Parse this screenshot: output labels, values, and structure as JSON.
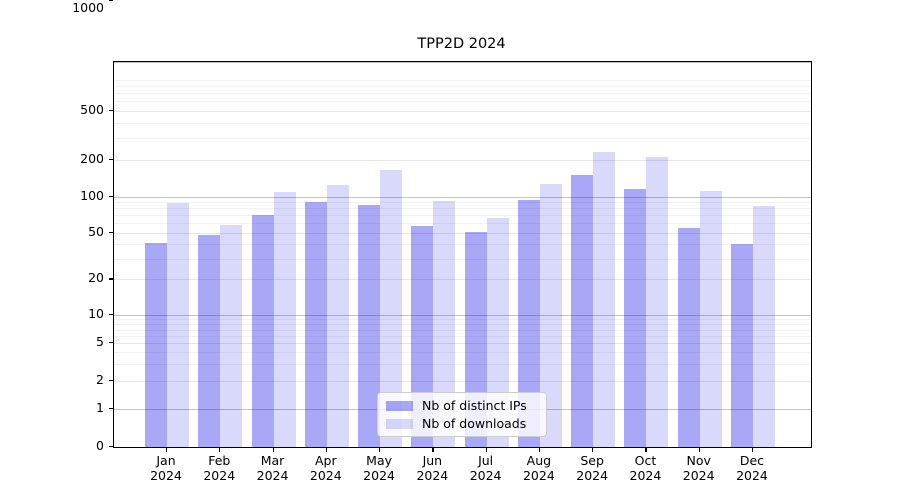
{
  "chart_data": {
    "type": "bar",
    "title": "TPP2D 2024",
    "months": [
      "Jan",
      "Feb",
      "Mar",
      "Apr",
      "May",
      "Jun",
      "Jul",
      "Aug",
      "Sep",
      "Oct",
      "Nov",
      "Dec"
    ],
    "year": "2024",
    "series": [
      {
        "name": "Nb of distinct IPs",
        "color": "rgba(0,0,230,0.34)",
        "values": [
          41,
          48,
          71,
          91,
          86,
          57,
          51,
          94,
          152,
          116,
          55,
          40
        ]
      },
      {
        "name": "Nb of downloads",
        "color": "rgba(0,0,230,0.15)",
        "values": [
          89,
          58,
          110,
          126,
          165,
          93,
          67,
          127,
          232,
          211,
          112,
          84
        ]
      }
    ],
    "y_axis": {
      "scale": "symlog",
      "ylim": [
        0,
        1000
      ],
      "ticks": [
        0,
        1,
        2,
        5,
        10,
        20,
        50,
        100,
        200,
        500,
        1000
      ],
      "minor_ticks": [
        3,
        4,
        6,
        7,
        8,
        9,
        30,
        40,
        60,
        70,
        80,
        90,
        300,
        400,
        600,
        700,
        800,
        900
      ]
    },
    "legend_position": "lower center",
    "grid": "on",
    "colors": {
      "grid_decade": "#c4c4c4",
      "grid_labeled": "#e7e7e7",
      "grid_minor": "#f2f2f2",
      "frame": "#000000"
    }
  }
}
